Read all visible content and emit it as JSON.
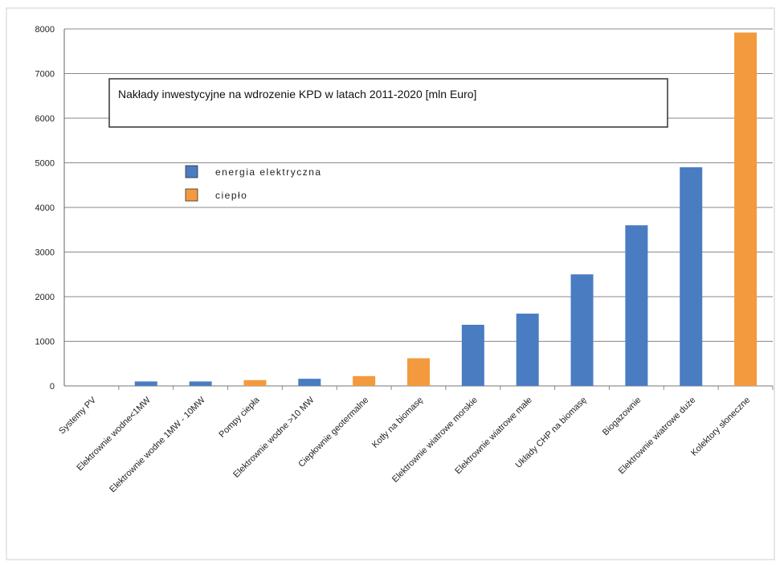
{
  "chart_data": {
    "type": "bar",
    "title": "Nakłady inwestycyjne na wdrozenie KPD w latach 2011-2020 [mln Euro]",
    "xlabel": "",
    "ylabel": "",
    "ylim": [
      0,
      8000
    ],
    "yticks": [
      0,
      1000,
      2000,
      3000,
      4000,
      5000,
      6000,
      7000,
      8000
    ],
    "grid": true,
    "legend_position": "upper-left",
    "categories": [
      "Systemy PV",
      "Elektrownie wodne<1MW",
      "Elektrownie wodne 1MW - 10MW",
      "Pompy ciepła",
      "Elektrownie wodne >10 MW",
      "Ciepłownie geotermalne",
      "Kotły na biomasę",
      "Elektrownie wiatrowe morskie",
      "Elektrownie wiatrowe małe",
      "Układy CHP na biomasę",
      "Biogazownie",
      "Elektrownie wiatrowe duże",
      "Kolektory słoneczne"
    ],
    "values": [
      0,
      100,
      100,
      130,
      160,
      220,
      620,
      1370,
      1620,
      2500,
      3600,
      4900,
      7920
    ],
    "series_of_bar": [
      "energia",
      "energia",
      "energia",
      "cieplo",
      "energia",
      "cieplo",
      "cieplo",
      "energia",
      "energia",
      "energia",
      "energia",
      "energia",
      "cieplo"
    ],
    "series": [
      {
        "key": "energia",
        "name": "energia elektryczna",
        "color": "#4a7cc2"
      },
      {
        "key": "cieplo",
        "name": "ciepło",
        "color": "#f39a3e"
      }
    ]
  }
}
